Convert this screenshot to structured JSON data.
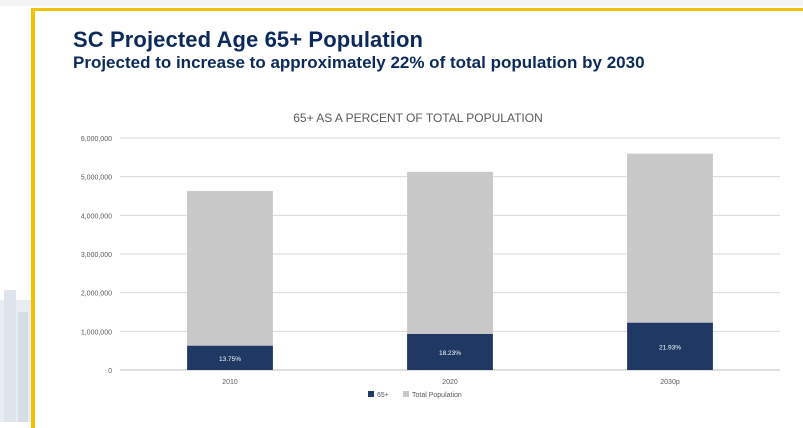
{
  "slide": {
    "title": "SC Projected Age 65+ Population",
    "subtitle": "Projected to increase to approximately 22% of total population by 2030"
  },
  "chart_data": {
    "type": "bar",
    "stacked": true,
    "title": "65+ AS A PERCENT OF TOTAL POPULATION",
    "categories": [
      "2010",
      "2020",
      "2030p"
    ],
    "series": [
      {
        "name": "65+",
        "values": [
          630000,
          935000,
          1225000
        ],
        "color": "#1f3864",
        "labels": [
          "13.75%",
          "18.23%",
          "21.93%"
        ]
      },
      {
        "name": "Total Population",
        "values": [
          4000000,
          4190000,
          4370000
        ],
        "color": "#c8c8c8"
      }
    ],
    "ylim": [
      0,
      6000000
    ],
    "yticks": [
      "0",
      "1,000,000",
      "2,000,000",
      "3,000,000",
      "4,000,000",
      "5,000,000",
      "6,000,000"
    ],
    "grid": true,
    "legend": "bottom"
  }
}
